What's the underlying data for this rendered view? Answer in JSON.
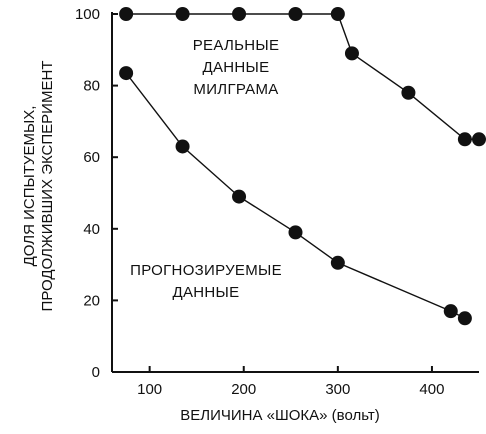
{
  "chart_data": {
    "type": "line",
    "xlabel": "ВЕЛИЧИНА «ШОКА» (вольт)",
    "ylabel_lines": [
      "ДОЛЯ ИСПЫТУЕМЫХ,",
      "ПРОДОЛЖИВШИХ ЭКСПЕРИМЕНТ"
    ],
    "xlim": [
      60,
      450
    ],
    "ylim": [
      0,
      100
    ],
    "xticks": [
      100,
      200,
      300,
      400
    ],
    "yticks": [
      0,
      20,
      40,
      60,
      80,
      100
    ],
    "grid": false,
    "annotations": [
      {
        "lines": [
          "РЕАЛЬНЫЕ",
          "ДАННЫЕ",
          "МИЛГРАМА"
        ],
        "series": "actual"
      },
      {
        "lines": [
          "ПРОГНОЗИРУЕМЫЕ",
          "ДАННЫЕ"
        ],
        "series": "predicted"
      }
    ],
    "series": [
      {
        "id": "actual",
        "x": [
          75,
          135,
          195,
          255,
          300,
          315,
          375,
          435,
          450
        ],
        "y": [
          100,
          100,
          100,
          100,
          100,
          89,
          78,
          65,
          65
        ]
      },
      {
        "id": "predicted",
        "x": [
          75,
          135,
          195,
          255,
          300,
          420,
          435
        ],
        "y": [
          83.5,
          63,
          49,
          39,
          30.5,
          17,
          15
        ]
      }
    ]
  }
}
